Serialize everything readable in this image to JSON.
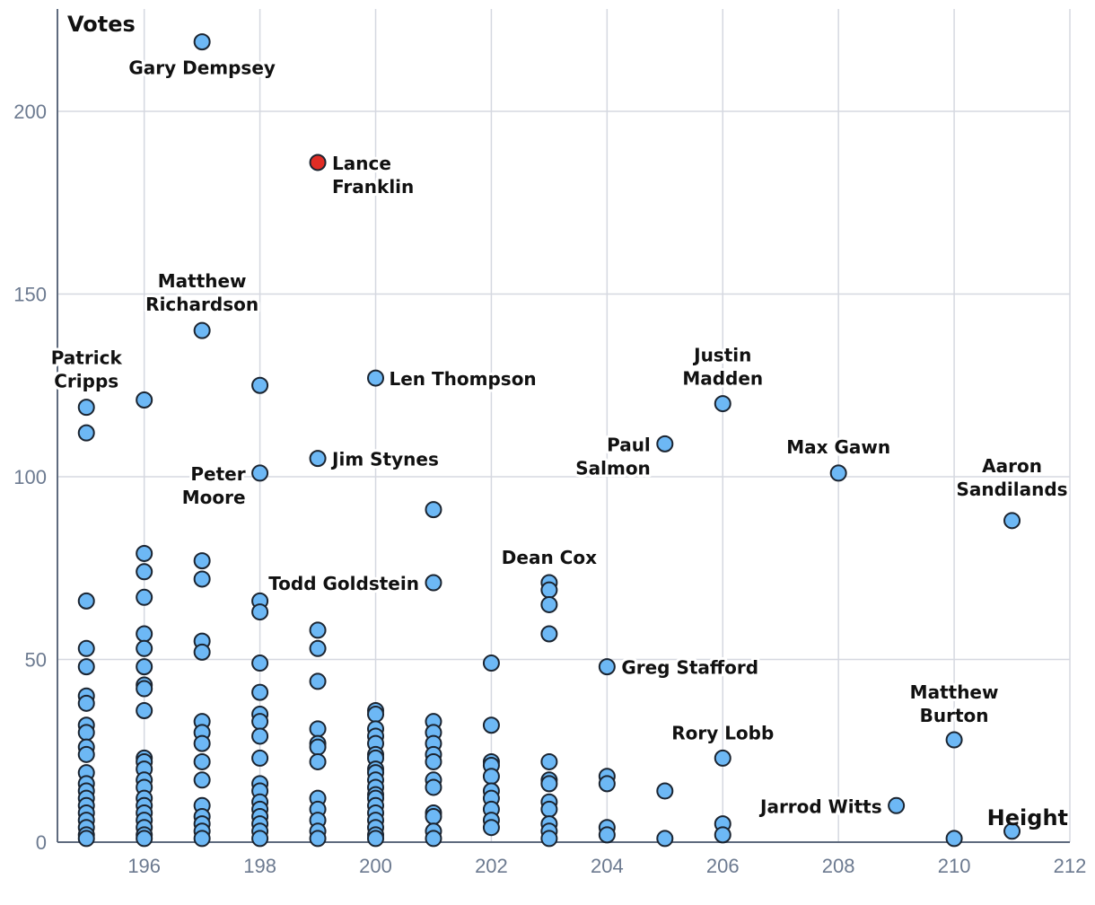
{
  "chart_data": {
    "type": "scatter",
    "xlabel": "Height",
    "ylabel": "Votes",
    "xlim": [
      194.5,
      212
    ],
    "ylim": [
      0,
      228
    ],
    "xticks": [
      196,
      198,
      200,
      202,
      204,
      206,
      208,
      210,
      212
    ],
    "yticks": [
      0,
      50,
      100,
      150,
      200
    ],
    "grid": true,
    "colors": {
      "default": "#6db8f5",
      "highlight": "#e02c25",
      "outline": "#1b2430"
    },
    "points": [
      {
        "x": 195,
        "y": 119
      },
      {
        "x": 195,
        "y": 112
      },
      {
        "x": 195,
        "y": 66
      },
      {
        "x": 195,
        "y": 53
      },
      {
        "x": 195,
        "y": 48
      },
      {
        "x": 195,
        "y": 40
      },
      {
        "x": 195,
        "y": 38
      },
      {
        "x": 195,
        "y": 32
      },
      {
        "x": 195,
        "y": 30
      },
      {
        "x": 195,
        "y": 26
      },
      {
        "x": 195,
        "y": 24
      },
      {
        "x": 195,
        "y": 19
      },
      {
        "x": 195,
        "y": 16
      },
      {
        "x": 195,
        "y": 14
      },
      {
        "x": 195,
        "y": 12
      },
      {
        "x": 195,
        "y": 10
      },
      {
        "x": 195,
        "y": 8
      },
      {
        "x": 195,
        "y": 6
      },
      {
        "x": 195,
        "y": 4
      },
      {
        "x": 195,
        "y": 2
      },
      {
        "x": 195,
        "y": 1
      },
      {
        "x": 196,
        "y": 121
      },
      {
        "x": 196,
        "y": 79
      },
      {
        "x": 196,
        "y": 74
      },
      {
        "x": 196,
        "y": 67
      },
      {
        "x": 196,
        "y": 57
      },
      {
        "x": 196,
        "y": 53
      },
      {
        "x": 196,
        "y": 48
      },
      {
        "x": 196,
        "y": 43
      },
      {
        "x": 196,
        "y": 42
      },
      {
        "x": 196,
        "y": 36
      },
      {
        "x": 196,
        "y": 23
      },
      {
        "x": 196,
        "y": 22
      },
      {
        "x": 196,
        "y": 20
      },
      {
        "x": 196,
        "y": 17
      },
      {
        "x": 196,
        "y": 15
      },
      {
        "x": 196,
        "y": 12
      },
      {
        "x": 196,
        "y": 10
      },
      {
        "x": 196,
        "y": 8
      },
      {
        "x": 196,
        "y": 6
      },
      {
        "x": 196,
        "y": 4
      },
      {
        "x": 196,
        "y": 2
      },
      {
        "x": 196,
        "y": 1
      },
      {
        "x": 197,
        "y": 219
      },
      {
        "x": 197,
        "y": 140
      },
      {
        "x": 197,
        "y": 77
      },
      {
        "x": 197,
        "y": 72
      },
      {
        "x": 197,
        "y": 55
      },
      {
        "x": 197,
        "y": 52
      },
      {
        "x": 197,
        "y": 33
      },
      {
        "x": 197,
        "y": 30
      },
      {
        "x": 197,
        "y": 27
      },
      {
        "x": 197,
        "y": 22
      },
      {
        "x": 197,
        "y": 17
      },
      {
        "x": 197,
        "y": 10
      },
      {
        "x": 197,
        "y": 7
      },
      {
        "x": 197,
        "y": 5
      },
      {
        "x": 197,
        "y": 3
      },
      {
        "x": 197,
        "y": 1
      },
      {
        "x": 198,
        "y": 125
      },
      {
        "x": 198,
        "y": 101
      },
      {
        "x": 198,
        "y": 66
      },
      {
        "x": 198,
        "y": 63
      },
      {
        "x": 198,
        "y": 49
      },
      {
        "x": 198,
        "y": 41
      },
      {
        "x": 198,
        "y": 35
      },
      {
        "x": 198,
        "y": 33
      },
      {
        "x": 198,
        "y": 29
      },
      {
        "x": 198,
        "y": 23
      },
      {
        "x": 198,
        "y": 16
      },
      {
        "x": 198,
        "y": 14
      },
      {
        "x": 198,
        "y": 11
      },
      {
        "x": 198,
        "y": 9
      },
      {
        "x": 198,
        "y": 7
      },
      {
        "x": 198,
        "y": 5
      },
      {
        "x": 198,
        "y": 3
      },
      {
        "x": 198,
        "y": 1
      },
      {
        "x": 199,
        "y": 186,
        "highlight": true
      },
      {
        "x": 199,
        "y": 105
      },
      {
        "x": 199,
        "y": 58
      },
      {
        "x": 199,
        "y": 53
      },
      {
        "x": 199,
        "y": 44
      },
      {
        "x": 199,
        "y": 31
      },
      {
        "x": 199,
        "y": 27
      },
      {
        "x": 199,
        "y": 26
      },
      {
        "x": 199,
        "y": 22
      },
      {
        "x": 199,
        "y": 12
      },
      {
        "x": 199,
        "y": 9
      },
      {
        "x": 199,
        "y": 6
      },
      {
        "x": 199,
        "y": 3
      },
      {
        "x": 199,
        "y": 1
      },
      {
        "x": 200,
        "y": 127
      },
      {
        "x": 200,
        "y": 36
      },
      {
        "x": 200,
        "y": 35
      },
      {
        "x": 200,
        "y": 31
      },
      {
        "x": 200,
        "y": 29
      },
      {
        "x": 200,
        "y": 27
      },
      {
        "x": 200,
        "y": 24
      },
      {
        "x": 200,
        "y": 23
      },
      {
        "x": 200,
        "y": 20
      },
      {
        "x": 200,
        "y": 19
      },
      {
        "x": 200,
        "y": 17
      },
      {
        "x": 200,
        "y": 15
      },
      {
        "x": 200,
        "y": 13
      },
      {
        "x": 200,
        "y": 12
      },
      {
        "x": 200,
        "y": 10
      },
      {
        "x": 200,
        "y": 8
      },
      {
        "x": 200,
        "y": 6
      },
      {
        "x": 200,
        "y": 4
      },
      {
        "x": 200,
        "y": 2
      },
      {
        "x": 200,
        "y": 1
      },
      {
        "x": 201,
        "y": 91
      },
      {
        "x": 201,
        "y": 71
      },
      {
        "x": 201,
        "y": 33
      },
      {
        "x": 201,
        "y": 30
      },
      {
        "x": 201,
        "y": 27
      },
      {
        "x": 201,
        "y": 24
      },
      {
        "x": 201,
        "y": 22
      },
      {
        "x": 201,
        "y": 17
      },
      {
        "x": 201,
        "y": 15
      },
      {
        "x": 201,
        "y": 8
      },
      {
        "x": 201,
        "y": 7
      },
      {
        "x": 201,
        "y": 3
      },
      {
        "x": 201,
        "y": 1
      },
      {
        "x": 202,
        "y": 49
      },
      {
        "x": 202,
        "y": 32
      },
      {
        "x": 202,
        "y": 22
      },
      {
        "x": 202,
        "y": 21
      },
      {
        "x": 202,
        "y": 18
      },
      {
        "x": 202,
        "y": 14
      },
      {
        "x": 202,
        "y": 12
      },
      {
        "x": 202,
        "y": 9
      },
      {
        "x": 202,
        "y": 6
      },
      {
        "x": 202,
        "y": 4
      },
      {
        "x": 203,
        "y": 71
      },
      {
        "x": 203,
        "y": 69
      },
      {
        "x": 203,
        "y": 65
      },
      {
        "x": 203,
        "y": 57
      },
      {
        "x": 203,
        "y": 22
      },
      {
        "x": 203,
        "y": 17
      },
      {
        "x": 203,
        "y": 16
      },
      {
        "x": 203,
        "y": 11
      },
      {
        "x": 203,
        "y": 9
      },
      {
        "x": 203,
        "y": 5
      },
      {
        "x": 203,
        "y": 3
      },
      {
        "x": 203,
        "y": 1
      },
      {
        "x": 204,
        "y": 48
      },
      {
        "x": 204,
        "y": 18
      },
      {
        "x": 204,
        "y": 16
      },
      {
        "x": 204,
        "y": 4
      },
      {
        "x": 204,
        "y": 2
      },
      {
        "x": 205,
        "y": 109
      },
      {
        "x": 205,
        "y": 14
      },
      {
        "x": 205,
        "y": 1
      },
      {
        "x": 206,
        "y": 120
      },
      {
        "x": 206,
        "y": 23
      },
      {
        "x": 206,
        "y": 5
      },
      {
        "x": 206,
        "y": 2
      },
      {
        "x": 208,
        "y": 101
      },
      {
        "x": 209,
        "y": 10
      },
      {
        "x": 210,
        "y": 28
      },
      {
        "x": 210,
        "y": 1
      },
      {
        "x": 211,
        "y": 88
      },
      {
        "x": 211,
        "y": 3
      }
    ],
    "annotations": [
      {
        "lines": [
          "Gary Dempsey"
        ],
        "x": 197,
        "y": 219
      },
      {
        "lines": [
          "Lance",
          "Franklin"
        ],
        "x": 199,
        "y": 186
      },
      {
        "lines": [
          "Matthew",
          "Richardson"
        ],
        "x": 197,
        "y": 140
      },
      {
        "lines": [
          "Patrick",
          "Cripps"
        ],
        "x": 195,
        "y": 119
      },
      {
        "lines": [
          "Len Thompson"
        ],
        "x": 200,
        "y": 127
      },
      {
        "lines": [
          "Justin",
          "Madden"
        ],
        "x": 206,
        "y": 120
      },
      {
        "lines": [
          "Paul",
          "Salmon"
        ],
        "x": 205,
        "y": 109
      },
      {
        "lines": [
          "Max Gawn"
        ],
        "x": 208,
        "y": 101
      },
      {
        "lines": [
          "Aaron",
          "Sandilands"
        ],
        "x": 211,
        "y": 88
      },
      {
        "lines": [
          "Peter",
          "Moore"
        ],
        "x": 198,
        "y": 101
      },
      {
        "lines": [
          "Jim Stynes"
        ],
        "x": 199,
        "y": 105
      },
      {
        "lines": [
          "Dean Cox"
        ],
        "x": 203,
        "y": 71
      },
      {
        "lines": [
          "Todd Goldstein"
        ],
        "x": 201,
        "y": 71
      },
      {
        "lines": [
          "Greg Stafford"
        ],
        "x": 204,
        "y": 48
      },
      {
        "lines": [
          "Matthew",
          "Burton"
        ],
        "x": 210,
        "y": 28
      },
      {
        "lines": [
          "Rory Lobb"
        ],
        "x": 206,
        "y": 23
      },
      {
        "lines": [
          "Jarrod Witts"
        ],
        "x": 209,
        "y": 10
      }
    ]
  }
}
